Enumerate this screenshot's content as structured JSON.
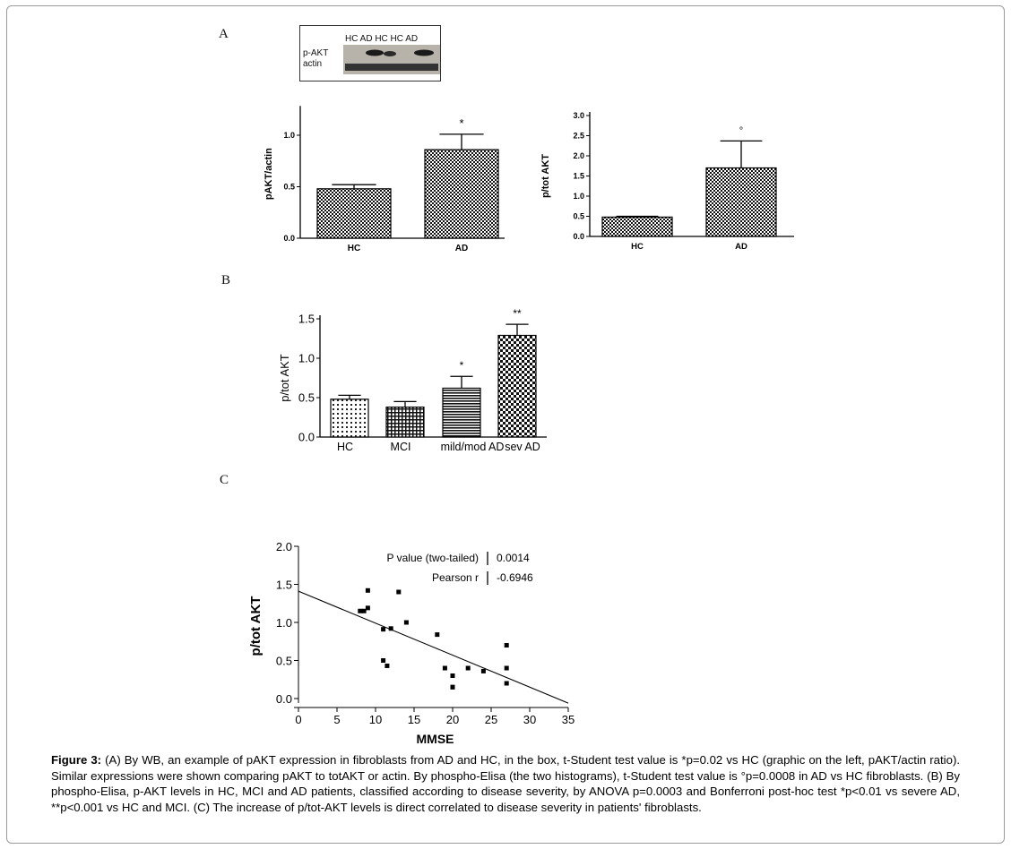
{
  "panel_labels": {
    "a": "A",
    "b": "B",
    "c": "C"
  },
  "blot": {
    "lanes_label": "HC AD HC HC AD",
    "row1_label": "p-AKT",
    "row2_label": "actin"
  },
  "chart_data": [
    {
      "id": "A-left",
      "type": "bar",
      "categories": [
        "HC",
        "AD"
      ],
      "values": [
        0.48,
        0.86
      ],
      "errors": [
        0.04,
        0.15
      ],
      "annotations": [
        "",
        "*"
      ],
      "ylabel": "pAKT/actin",
      "xlabel": "",
      "ylim": [
        0,
        1.25
      ],
      "yticks": [
        "0.0",
        "0.5",
        "1.0"
      ],
      "fill": "checkered"
    },
    {
      "id": "A-right",
      "type": "bar",
      "categories": [
        "HC",
        "AD"
      ],
      "values": [
        0.48,
        1.7
      ],
      "errors": [
        0.02,
        0.67
      ],
      "annotations": [
        "",
        "°"
      ],
      "ylabel": "p/tot AKT",
      "xlabel": "",
      "ylim": [
        0,
        3.0
      ],
      "yticks": [
        "0.0",
        "0.5",
        "1.0",
        "1.5",
        "2.0",
        "2.5",
        "3.0"
      ],
      "fill": "checkered"
    },
    {
      "id": "B",
      "type": "bar",
      "categories": [
        "HC",
        "MCI",
        "mild/mod AD",
        "sev AD"
      ],
      "values": [
        0.48,
        0.38,
        0.62,
        1.29
      ],
      "errors": [
        0.05,
        0.07,
        0.15,
        0.14
      ],
      "annotations": [
        "",
        "",
        "*",
        "**"
      ],
      "ylabel": "p/tot AKT",
      "xlabel": "",
      "ylim": [
        0,
        1.5
      ],
      "yticks": [
        "0.0",
        "0.5",
        "1.0",
        "1.5"
      ],
      "fills": [
        "dots",
        "grid",
        "hlines",
        "checker"
      ]
    },
    {
      "id": "C",
      "type": "scatter",
      "x": [
        8,
        8.5,
        9,
        9,
        11,
        11,
        11.5,
        12,
        13,
        14,
        18,
        19,
        20,
        20,
        20,
        22,
        24,
        27,
        27,
        27
      ],
      "y": [
        1.15,
        1.15,
        1.19,
        1.42,
        0.5,
        0.91,
        0.43,
        0.92,
        1.4,
        1.0,
        0.84,
        0.4,
        0.3,
        0.15,
        0.15,
        0.4,
        0.36,
        0.7,
        0.4,
        0.2
      ],
      "regression": {
        "x": [
          0,
          35
        ],
        "y": [
          1.41,
          -0.06
        ]
      },
      "xlabel": "MMSE",
      "ylabel": "p/tot AKT",
      "xlim": [
        0,
        35
      ],
      "ylim": [
        0,
        2.0
      ],
      "xticks": [
        "0",
        "5",
        "10",
        "15",
        "20",
        "25",
        "30",
        "35"
      ],
      "yticks": [
        "0.0",
        "0.5",
        "1.0",
        "1.5",
        "2.0"
      ],
      "stats": [
        {
          "label": "P value (two-tailed)",
          "value": "0.0014"
        },
        {
          "label": "Pearson r",
          "value": "-0.6946"
        }
      ]
    }
  ],
  "caption": {
    "lead": "Figure 3:",
    "text": " (A) By WB, an example of pAKT expression in fibroblasts from AD and HC, in the box, t-Student test value is *p=0.02 vs HC (graphic on the left, pAKT/actin ratio). Similar expressions were shown comparing pAKT to totAKT or actin. By phospho-Elisa (the two histograms), t-Student test value is °p=0.0008 in AD vs HC fibroblasts. (B) By phospho-Elisa, p-AKT levels in HC, MCI and AD patients, classified according to disease severity, by ANOVA p=0.0003 and Bonferroni post-hoc test *p<0.01 vs severe AD, **p<0.001 vs HC and MCI. (C) The increase of p/tot-AKT levels is direct correlated to disease severity in patients' fibroblasts."
  }
}
